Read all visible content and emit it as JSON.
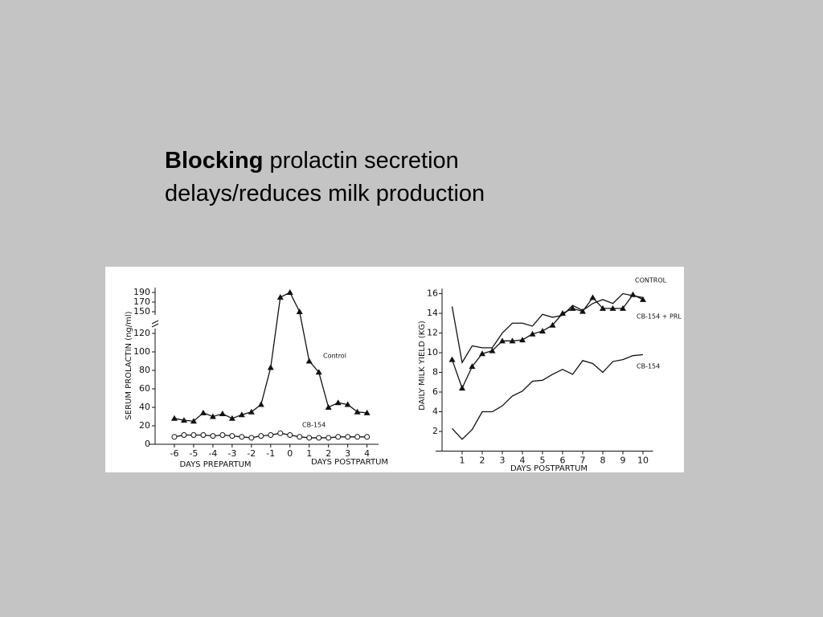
{
  "title": {
    "bold": "Blocking",
    "line1": "prolactin secretion",
    "line2": "delays/reduces milk production"
  },
  "chart_data": [
    {
      "type": "line",
      "y_label": "SERUM PROLACTIN (ng/ml)",
      "x_labels": [
        "DAYS PREPARTUM",
        "DAYS POSTPARTUM"
      ],
      "xlim": [
        -7,
        4.6
      ],
      "xticks": [
        -6,
        -5,
        -4,
        -3,
        -2,
        -1,
        0,
        1,
        2,
        3,
        4
      ],
      "yticks": [
        0,
        20,
        40,
        60,
        80,
        100,
        120,
        150,
        170,
        190
      ],
      "y_axis_break": true,
      "x": [
        -6,
        -5.5,
        -5,
        -4.5,
        -4,
        -3.5,
        -3,
        -2.5,
        -2,
        -1.5,
        -1,
        -0.5,
        0,
        0.5,
        1,
        1.5,
        2,
        2.5,
        3,
        3.5,
        4
      ],
      "series": [
        {
          "name": "Control",
          "color": "#111111",
          "marker": "triangle",
          "values": [
            28,
            26,
            25,
            34,
            30,
            33,
            28,
            32,
            35,
            43,
            83,
            180,
            190,
            150,
            90,
            78,
            40,
            45,
            43,
            35,
            34
          ]
        },
        {
          "name": "CB-154",
          "color": "#111111",
          "marker": "circle",
          "values": [
            8,
            10,
            10,
            10,
            9,
            10,
            9,
            8,
            7,
            9,
            10,
            12,
            10,
            8,
            7,
            7,
            7,
            8,
            8,
            8,
            8
          ]
        }
      ]
    },
    {
      "type": "line",
      "y_label": "DAILY MILK YIELD (KG)",
      "x_labels": [
        "DAYS POSTPARTUM"
      ],
      "xlim": [
        0,
        10.5
      ],
      "xticks": [
        1,
        2,
        3,
        4,
        5,
        6,
        7,
        8,
        9,
        10
      ],
      "ylim": [
        0,
        16.5
      ],
      "yticks": [
        2,
        4,
        6,
        8,
        10,
        12,
        14,
        16
      ],
      "y_axis_break": false,
      "x": [
        0.5,
        1,
        1.5,
        2,
        2.5,
        3,
        3.5,
        4,
        4.5,
        5,
        5.5,
        6,
        6.5,
        7,
        7.5,
        8,
        8.5,
        9,
        9.5,
        10
      ],
      "series": [
        {
          "name": "CONTROL",
          "color": "#111111",
          "marker": "none",
          "values": [
            14.7,
            9.0,
            10.7,
            10.5,
            10.5,
            12.0,
            13.0,
            13.0,
            12.7,
            13.9,
            13.6,
            13.8,
            14.8,
            14.3,
            15.0,
            15.4,
            15.0,
            16.0,
            15.8,
            15.6
          ]
        },
        {
          "name": "CB-154 + PRL",
          "color": "#111111",
          "marker": "triangle",
          "values": [
            9.3,
            6.4,
            8.6,
            9.9,
            10.2,
            11.2,
            11.2,
            11.3,
            11.9,
            12.2,
            12.8,
            14.0,
            14.5,
            14.2,
            15.6,
            14.5,
            14.5,
            14.5,
            15.9,
            15.4
          ]
        },
        {
          "name": "CB-154",
          "color": "#111111",
          "marker": "none",
          "values": [
            2.3,
            1.2,
            2.2,
            4.0,
            4.0,
            4.6,
            5.6,
            6.1,
            7.1,
            7.2,
            7.8,
            8.3,
            7.8,
            9.2,
            8.9,
            8.0,
            9.1,
            9.3,
            9.7,
            9.8
          ]
        }
      ]
    }
  ]
}
